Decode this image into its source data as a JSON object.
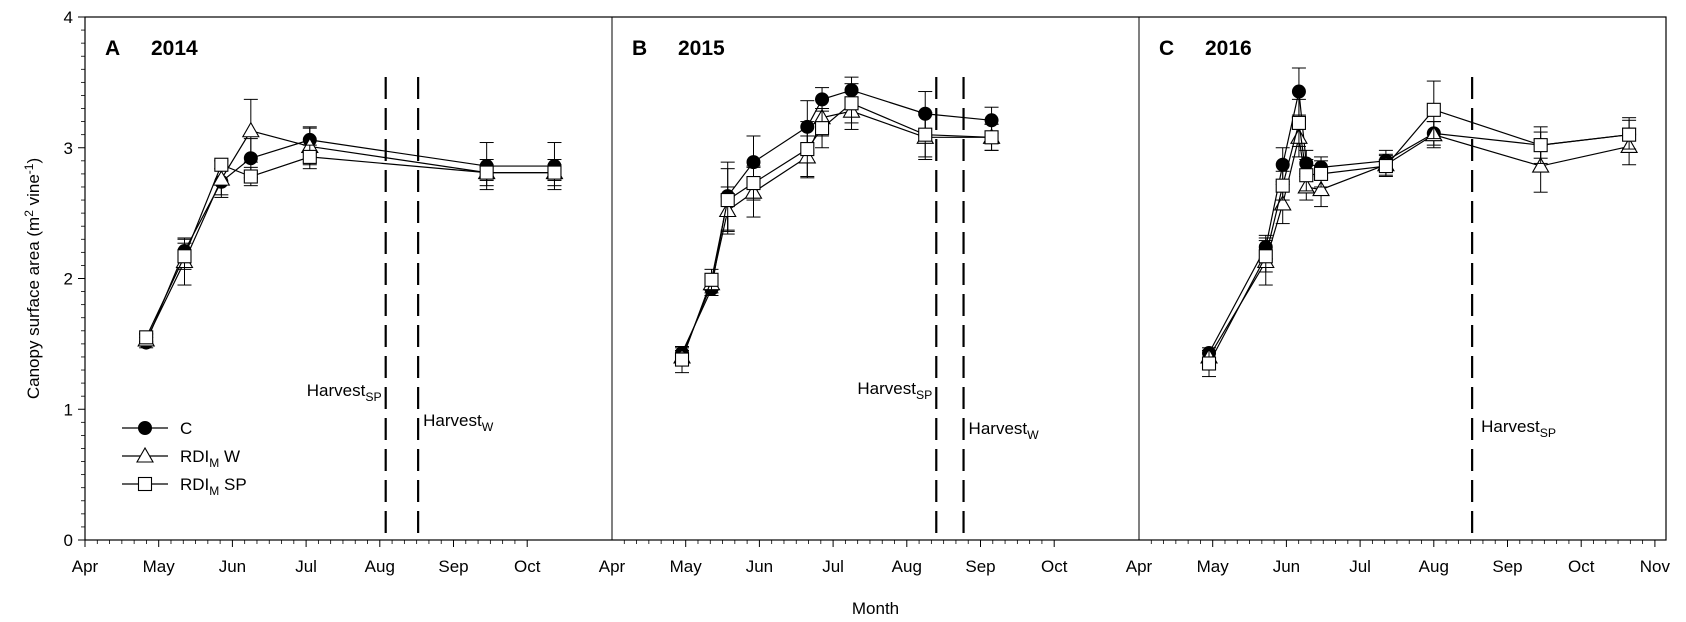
{
  "chart_data": {
    "type": "line",
    "ylabel": "Canopy surface area (m² vine⁻¹)",
    "ylabel_parts": {
      "main": "Canopy surface area (m",
      "sup1": "2",
      "mid": " vine",
      "sup2": "-1",
      "end": ")"
    },
    "xlabel": "Month",
    "ylim": [
      0,
      4
    ],
    "yticks": [
      0,
      1,
      2,
      3,
      4
    ],
    "grid": false,
    "legend_position": "lower-left of panel A",
    "legend": [
      {
        "label": "C",
        "subscript": "",
        "suffix": "",
        "marker": "filled-circle"
      },
      {
        "label": "RDI",
        "subscript": "M",
        "suffix": " W",
        "marker": "open-triangle"
      },
      {
        "label": "RDI",
        "subscript": "M",
        "suffix": " SP",
        "marker": "open-square"
      }
    ],
    "panels": [
      {
        "letter": "A",
        "year": "2014",
        "month_ticks": [
          "Apr",
          "May",
          "Jun",
          "Jul",
          "Aug",
          "Sep",
          "Oct"
        ],
        "harvest_lines": [
          {
            "month": 4.08,
            "label": "Harvest",
            "sub": "SP"
          },
          {
            "month": 4.52,
            "label": "Harvest",
            "sub": "W"
          }
        ],
        "series": [
          {
            "name": "C",
            "marker": "circle",
            "x": [
              0.83,
              1.35,
              1.85,
              2.25,
              3.05,
              5.45,
              6.37
            ],
            "y": [
              1.51,
              2.21,
              2.74,
              2.92,
              3.06,
              2.86,
              2.86
            ],
            "err": [
              0.04,
              0.09,
              0.1,
              0.15,
              0.1,
              0.18,
              0.18
            ]
          },
          {
            "name": "RDIM W",
            "marker": "triangle",
            "x": [
              0.83,
              1.35,
              1.85,
              2.25,
              3.05,
              5.45,
              6.37
            ],
            "y": [
              1.53,
              2.13,
              2.76,
              3.13,
              3.01,
              2.81,
              2.81
            ],
            "err": [
              0.04,
              0.18,
              0.14,
              0.24,
              0.14,
              0.1,
              0.1
            ]
          },
          {
            "name": "RDIM SP",
            "marker": "square",
            "x": [
              0.83,
              1.35,
              1.85,
              2.25,
              3.05,
              5.45,
              6.37
            ],
            "y": [
              1.55,
              2.17,
              2.87,
              2.78,
              2.93,
              2.81,
              2.81
            ],
            "err": [
              0.03,
              0.1,
              0.03,
              0.07,
              0.09,
              0.06,
              0.06
            ]
          }
        ]
      },
      {
        "letter": "B",
        "year": "2015",
        "month_ticks": [
          "Apr",
          "May",
          "Jun",
          "Jul",
          "Aug",
          "Sep",
          "Oct"
        ],
        "harvest_lines": [
          {
            "month": 4.4,
            "label": "Harvest",
            "sub": "SP"
          },
          {
            "month": 4.77,
            "label": "Harvest",
            "sub": "W"
          }
        ],
        "series": [
          {
            "name": "C",
            "marker": "circle",
            "x": [
              0.95,
              1.35,
              1.57,
              1.92,
              2.65,
              2.85,
              3.25,
              4.25,
              5.15
            ],
            "y": [
              1.43,
              1.92,
              2.63,
              2.89,
              3.16,
              3.37,
              3.44,
              3.26,
              3.21
            ],
            "err": [
              0.04,
              0.05,
              0.26,
              0.2,
              0.2,
              0.09,
              0.1,
              0.17,
              0.1
            ]
          },
          {
            "name": "RDIM W",
            "marker": "triangle",
            "x": [
              0.95,
              1.35,
              1.57,
              1.92,
              2.65,
              2.85,
              3.25,
              4.25,
              5.15
            ],
            "y": [
              1.4,
              1.96,
              2.52,
              2.66,
              2.93,
              3.23,
              3.28,
              3.08,
              3.08
            ],
            "err": [
              0.05,
              0.07,
              0.18,
              0.19,
              0.16,
              0.14,
              0.14,
              0.17,
              0.1
            ]
          },
          {
            "name": "RDIM SP",
            "marker": "square",
            "x": [
              0.95,
              1.35,
              1.57,
              1.92,
              2.65,
              2.85,
              3.25,
              4.25,
              5.15
            ],
            "y": [
              1.38,
              1.99,
              2.6,
              2.73,
              2.99,
              3.15,
              3.34,
              3.1,
              3.08
            ],
            "err": [
              0.1,
              0.08,
              0.24,
              0.13,
              0.21,
              0.15,
              0.15,
              0.17,
              0.1
            ]
          }
        ]
      },
      {
        "letter": "C",
        "year": "2016",
        "month_ticks": [
          "Apr",
          "May",
          "Jun",
          "Jul",
          "Aug",
          "Sep",
          "Oct",
          "Nov"
        ],
        "harvest_lines": [
          {
            "month": 4.52,
            "label": "Harvest",
            "sub": "SP"
          }
        ],
        "series": [
          {
            "name": "C",
            "marker": "circle",
            "x": [
              0.95,
              1.72,
              1.95,
              2.17,
              2.27,
              2.47,
              3.35,
              4.0,
              5.45,
              6.65
            ],
            "y": [
              1.43,
              2.24,
              2.87,
              3.43,
              2.88,
              2.85,
              2.9,
              3.11,
              3.02,
              3.1
            ],
            "err": [
              0.04,
              0.09,
              0.13,
              0.18,
              0.1,
              0.08,
              0.08,
              0.09,
              0.1,
              0.13
            ]
          },
          {
            "name": "RDIM W",
            "marker": "triangle",
            "x": [
              0.95,
              1.72,
              1.95,
              2.17,
              2.27,
              2.47,
              3.35,
              4.0,
              5.45,
              6.65
            ],
            "y": [
              1.4,
              2.13,
              2.57,
              3.08,
              2.7,
              2.68,
              2.87,
              3.1,
              2.86,
              3.01
            ],
            "err": [
              0.05,
              0.18,
              0.15,
              0.15,
              0.1,
              0.13,
              0.08,
              0.1,
              0.2,
              0.14
            ]
          },
          {
            "name": "RDIM SP",
            "marker": "square",
            "x": [
              0.95,
              1.72,
              1.95,
              2.17,
              2.27,
              2.47,
              3.35,
              4.0,
              5.45,
              6.65
            ],
            "y": [
              1.35,
              2.17,
              2.71,
              3.19,
              2.79,
              2.8,
              2.86,
              3.29,
              3.02,
              3.1
            ],
            "err": [
              0.1,
              0.12,
              0.11,
              0.18,
              0.12,
              0.1,
              0.08,
              0.22,
              0.14,
              0.11
            ]
          }
        ]
      }
    ]
  }
}
